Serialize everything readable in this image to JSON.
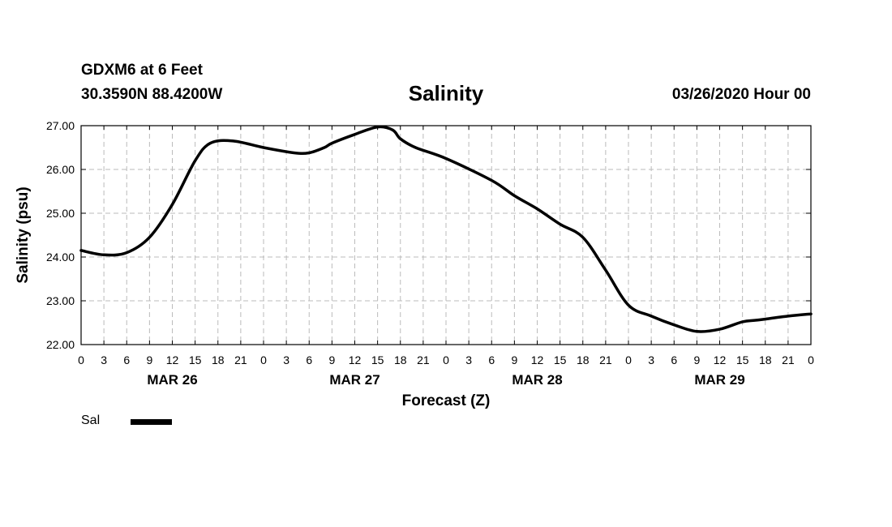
{
  "header": {
    "station": "GDXM6 at 6 Feet",
    "coords": "30.3590N 88.4200W",
    "title": "Salinity",
    "forecast_date": "03/26/2020 Hour 00"
  },
  "legend": {
    "label": "Sal",
    "color": "#000000"
  },
  "chart_data": {
    "type": "line",
    "title": "Salinity",
    "xlabel": "Forecast (Z)",
    "ylabel": "Salinity (psu)",
    "ylim": [
      22.0,
      27.0
    ],
    "y_ticks": [
      "22.00",
      "23.00",
      "24.00",
      "25.00",
      "26.00",
      "27.00"
    ],
    "y_tick_values": [
      22,
      23,
      24,
      25,
      26,
      27
    ],
    "x_range_hours": [
      0,
      96
    ],
    "x_tick_hours": [
      0,
      3,
      6,
      9,
      12,
      15,
      18,
      21,
      24,
      27,
      30,
      33,
      36,
      39,
      42,
      45,
      48,
      51,
      54,
      57,
      60,
      63,
      66,
      69,
      72,
      75,
      78,
      81,
      84,
      87,
      90,
      93,
      96
    ],
    "x_tick_labels": [
      "0",
      "3",
      "6",
      "9",
      "12",
      "15",
      "18",
      "21",
      "0",
      "3",
      "6",
      "9",
      "12",
      "15",
      "18",
      "21",
      "0",
      "3",
      "6",
      "9",
      "12",
      "15",
      "18",
      "21",
      "0",
      "3",
      "6",
      "9",
      "12",
      "15",
      "18",
      "21",
      "0"
    ],
    "day_labels": [
      {
        "label": "MAR 26",
        "hour": 12
      },
      {
        "label": "MAR 27",
        "hour": 36
      },
      {
        "label": "MAR 28",
        "hour": 60
      },
      {
        "label": "MAR 29",
        "hour": 84
      }
    ],
    "grid": true,
    "series": [
      {
        "name": "Sal",
        "color": "#000000",
        "x": [
          0,
          3,
          6,
          9,
          12,
          15,
          17,
          20,
          24,
          28,
          30,
          32,
          33,
          36,
          39,
          41,
          42,
          44,
          48,
          54,
          57,
          60,
          63,
          66,
          69,
          72,
          75,
          78,
          81,
          84,
          87,
          89,
          93,
          96
        ],
        "values": [
          24.15,
          24.05,
          24.1,
          24.45,
          25.2,
          26.2,
          26.6,
          26.65,
          26.5,
          26.38,
          26.38,
          26.5,
          26.6,
          26.8,
          26.97,
          26.9,
          26.7,
          26.5,
          26.25,
          25.75,
          25.4,
          25.1,
          24.75,
          24.45,
          23.7,
          22.9,
          22.65,
          22.45,
          22.3,
          22.35,
          22.52,
          22.56,
          22.65,
          22.7
        ]
      }
    ]
  }
}
